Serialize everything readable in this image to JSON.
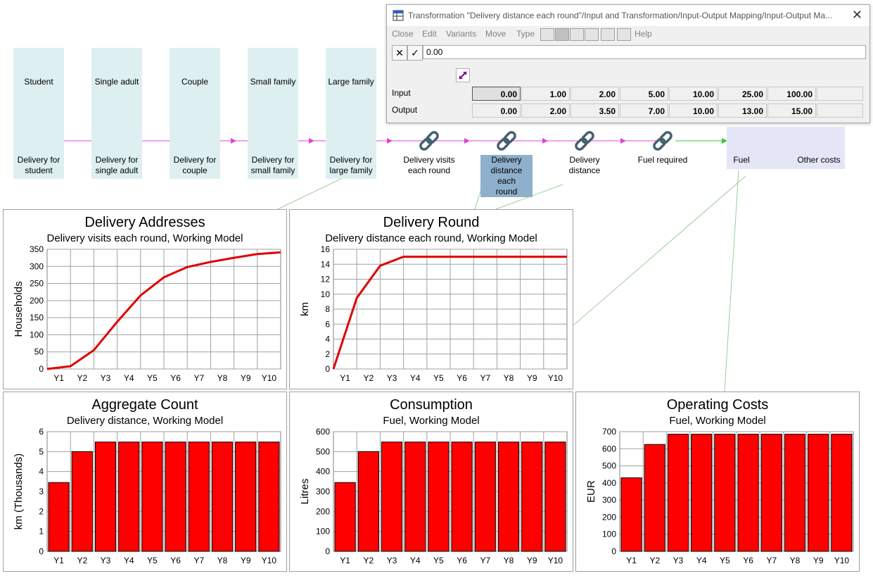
{
  "colors": {
    "node_box": "#ddeff1",
    "selected_label": "#8fb0cc",
    "magenta_link": "#e040e0",
    "teal_link": "#1a7f7f",
    "green_link": "#33cc33",
    "navy_link": "#000080",
    "bar_fill": "#ff0000",
    "line_color": "#e00000"
  },
  "diagram": {
    "sources": [
      {
        "label": "Student",
        "icon": "people-group-icon"
      },
      {
        "label": "Single adult",
        "icon": "people-group-icon"
      },
      {
        "label": "Couple",
        "icon": "people-group-icon"
      },
      {
        "label": "Small family",
        "icon": "people-group-icon"
      },
      {
        "label": "Large family",
        "icon": "people-group-icon"
      }
    ],
    "deliveries": [
      {
        "line1": "Delivery for",
        "line2": "student",
        "icon": "hand-sparkle-icon"
      },
      {
        "line1": "Delivery for",
        "line2": "single adult",
        "icon": "hand-sparkle-icon"
      },
      {
        "line1": "Delivery for",
        "line2": "couple",
        "icon": "hand-sparkle-icon"
      },
      {
        "line1": "Delivery for",
        "line2": "small family",
        "icon": "hand-sparkle-icon"
      },
      {
        "line1": "Delivery for",
        "line2": "large family",
        "icon": "hand-sparkle-icon"
      }
    ],
    "chain": [
      {
        "lines": [
          "Delivery visits",
          "each round"
        ],
        "icon": "chain-link-icon"
      },
      {
        "lines": [
          "Delivery",
          "distance each",
          "round"
        ],
        "icon": "chain-link-icon",
        "selected": true
      },
      {
        "lines": [
          "Delivery",
          "distance"
        ],
        "icon": "chain-link-icon"
      },
      {
        "lines": [
          "Fuel required"
        ],
        "icon": "chain-link-icon"
      }
    ],
    "fuel": {
      "label": "Fuel",
      "icon": "puzzle-piece-icon"
    },
    "other": {
      "label": "Other costs",
      "icon": "puzzle-document-icon"
    }
  },
  "transformation_window": {
    "title": "Transformation \"Delivery distance each round\"/Input and Transformation/Input-Output Mapping/Input-Output Ma...",
    "menus": [
      "Close",
      "Edit",
      "Variants",
      "Move",
      "Type",
      "Help"
    ],
    "formula_value": "0.00",
    "input_label": "Input",
    "output_label": "Output",
    "inputs": [
      "0.00",
      "1.00",
      "2.00",
      "5.00",
      "10.00",
      "25.00",
      "100.00",
      ""
    ],
    "outputs": [
      "0.00",
      "2.00",
      "3.50",
      "7.00",
      "10.00",
      "13.00",
      "15.00",
      ""
    ]
  },
  "chart_data": [
    {
      "type": "line",
      "title": "Delivery Addresses",
      "subtitle": "Delivery visits each round, Working Model",
      "xlabel": "",
      "ylabel": "Households",
      "categories": [
        "Y1",
        "Y2",
        "Y3",
        "Y4",
        "Y5",
        "Y6",
        "Y7",
        "Y8",
        "Y9",
        "Y10"
      ],
      "x": [
        0,
        1,
        2,
        3,
        4,
        5,
        6,
        7,
        8,
        9,
        10
      ],
      "values": [
        0,
        8,
        55,
        138,
        215,
        268,
        298,
        313,
        325,
        336,
        341
      ],
      "ylim": [
        0,
        350
      ],
      "yticks": [
        0,
        50,
        100,
        150,
        200,
        250,
        300,
        350
      ],
      "grid": true
    },
    {
      "type": "line",
      "title": "Delivery Round",
      "subtitle": "Delivery distance each round, Working Model",
      "xlabel": "",
      "ylabel": "km",
      "categories": [
        "Y1",
        "Y2",
        "Y3",
        "Y4",
        "Y5",
        "Y6",
        "Y7",
        "Y8",
        "Y9",
        "Y10"
      ],
      "x": [
        0,
        1,
        2,
        3,
        4,
        5,
        6,
        7,
        8,
        9,
        10
      ],
      "values": [
        0,
        9.5,
        13.8,
        15,
        15,
        15,
        15,
        15,
        15,
        15,
        15
      ],
      "ylim": [
        0,
        16
      ],
      "yticks": [
        0,
        2,
        4,
        6,
        8,
        10,
        12,
        14,
        16
      ],
      "grid": true
    },
    {
      "type": "bar",
      "title": "Aggregate Count",
      "subtitle": "Delivery distance, Working Model",
      "xlabel": "",
      "ylabel": "km (Thousands)",
      "categories": [
        "Y1",
        "Y2",
        "Y3",
        "Y4",
        "Y5",
        "Y6",
        "Y7",
        "Y8",
        "Y9",
        "Y10"
      ],
      "values": [
        3.45,
        5.0,
        5.48,
        5.48,
        5.48,
        5.48,
        5.48,
        5.48,
        5.48,
        5.48
      ],
      "ylim": [
        0,
        6
      ],
      "yticks": [
        0,
        1,
        2,
        3,
        4,
        5,
        6
      ],
      "grid": true
    },
    {
      "type": "bar",
      "title": "Consumption",
      "subtitle": "Fuel, Working Model",
      "xlabel": "",
      "ylabel": "Litres",
      "categories": [
        "Y1",
        "Y2",
        "Y3",
        "Y4",
        "Y5",
        "Y6",
        "Y7",
        "Y8",
        "Y9",
        "Y10"
      ],
      "values": [
        345,
        500,
        548,
        548,
        548,
        548,
        548,
        548,
        548,
        548
      ],
      "ylim": [
        0,
        600
      ],
      "yticks": [
        0,
        100,
        200,
        300,
        400,
        500,
        600
      ],
      "grid": true
    },
    {
      "type": "bar",
      "title": "Operating Costs",
      "subtitle": "Fuel, Working Model",
      "xlabel": "",
      "ylabel": "EUR",
      "categories": [
        "Y1",
        "Y2",
        "Y3",
        "Y4",
        "Y5",
        "Y6",
        "Y7",
        "Y8",
        "Y9",
        "Y10"
      ],
      "values": [
        430,
        625,
        685,
        685,
        685,
        685,
        685,
        685,
        685,
        685
      ],
      "ylim": [
        0,
        700
      ],
      "yticks": [
        0,
        100,
        200,
        300,
        400,
        500,
        600,
        700
      ],
      "grid": true
    }
  ]
}
